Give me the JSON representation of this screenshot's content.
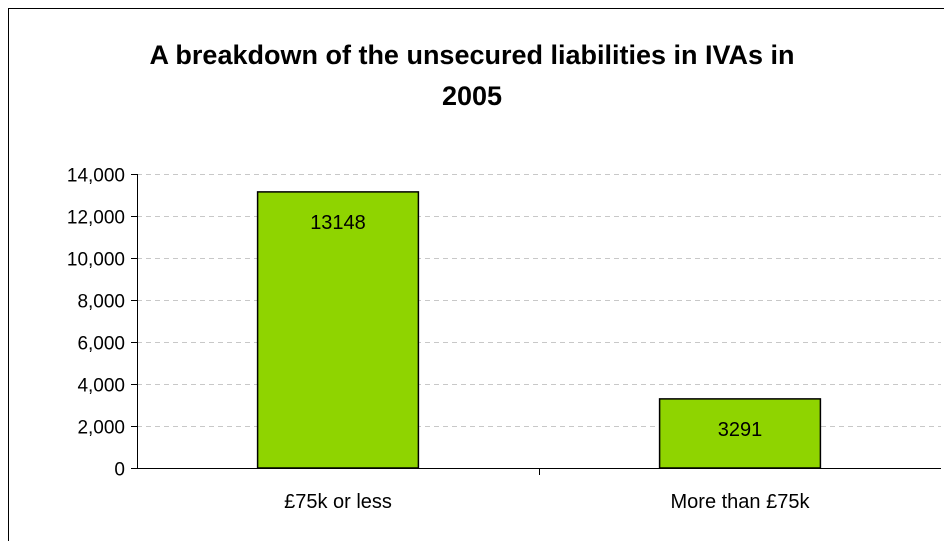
{
  "chart_data": {
    "type": "bar",
    "title_lines": [
      "A breakdown of the unsecured liabilities in IVAs in",
      "2005"
    ],
    "categories": [
      "£75k or less",
      "More than £75k"
    ],
    "values": [
      13148,
      3291
    ],
    "data_labels": [
      "13148",
      "3291"
    ],
    "y_ticks": [
      "0",
      "2,000",
      "4,000",
      "6,000",
      "8,000",
      "10,000",
      "12,000",
      "14,000"
    ],
    "ylim": [
      0,
      14000
    ],
    "grid": true,
    "legend": "none",
    "bar_color": "#8fd400",
    "bar_stroke": "#000000",
    "grid_color": "#c8c8c8"
  }
}
